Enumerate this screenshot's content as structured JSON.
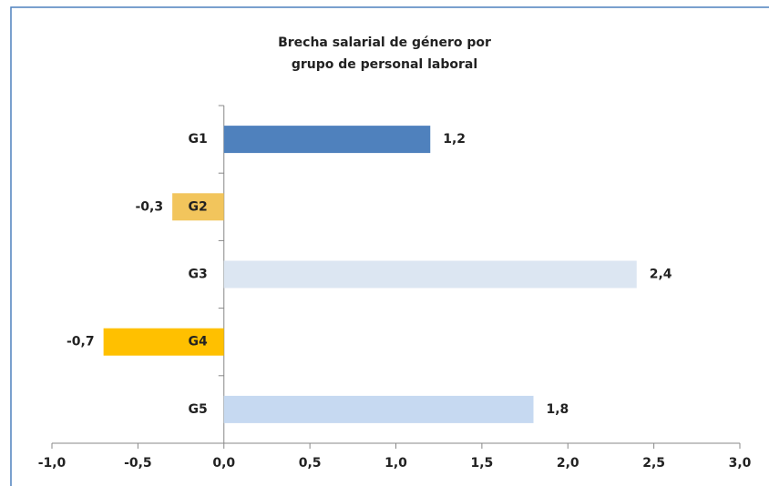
{
  "chart_data": {
    "type": "hbar",
    "title": [
      "Brecha salarial de género por",
      "grupo de personal laboral"
    ],
    "categories": [
      "G1",
      "G2",
      "G3",
      "G4",
      "G5"
    ],
    "values": [
      1.2,
      -0.3,
      2.4,
      -0.7,
      1.8
    ],
    "value_labels": [
      "1,2",
      "-0,3",
      "2,4",
      "-0,7",
      "1,8"
    ],
    "colors": [
      "#4f81bd",
      "#f2c55c",
      "#dce6f2",
      "#ffc000",
      "#c6d9f1"
    ],
    "xlim": [
      -1,
      3
    ],
    "xticks": [
      {
        "value": -1,
        "label": "-1,0"
      },
      {
        "value": -0.5,
        "label": "-0,5"
      },
      {
        "value": 0,
        "label": "0,0"
      },
      {
        "value": 0.5,
        "label": "0,5"
      },
      {
        "value": 1,
        "label": "1,0"
      },
      {
        "value": 1.5,
        "label": "1,5"
      },
      {
        "value": 2,
        "label": "2,0"
      },
      {
        "value": 2.5,
        "label": "2,5"
      },
      {
        "value": 3,
        "label": "3,0"
      }
    ],
    "grid": false
  }
}
